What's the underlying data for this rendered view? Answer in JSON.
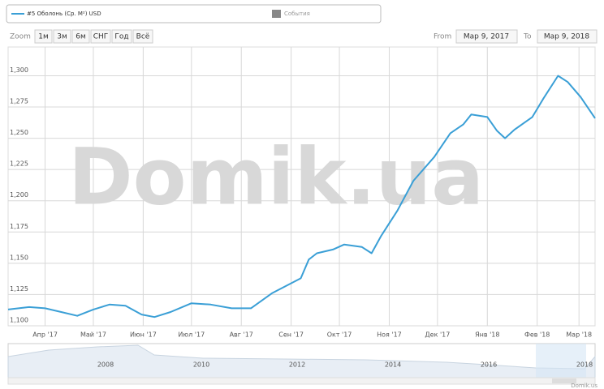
{
  "chart_data": {
    "type": "line",
    "legend": {
      "series_label": "#5 Оболонь (Ср. М²) USD",
      "events_label": "События"
    },
    "zoom": {
      "label": "Zoom",
      "buttons": [
        "1м",
        "3м",
        "6м",
        "СНГ",
        "Год",
        "Всё"
      ]
    },
    "range": {
      "from_label": "From",
      "from": "Map 9, 2017",
      "to_label": "To",
      "to": "Map 9, 2018"
    },
    "watermark": "Domik.ua",
    "credit": "Domik.us",
    "xlim": [
      0,
      365
    ],
    "xticks": [
      {
        "value": 23,
        "label": "Апр '17"
      },
      {
        "value": 53,
        "label": "Май '17"
      },
      {
        "value": 84,
        "label": "Июн '17"
      },
      {
        "value": 114,
        "label": "Июл '17"
      },
      {
        "value": 145,
        "label": "Авг '17"
      },
      {
        "value": 176,
        "label": "Сен '17"
      },
      {
        "value": 206,
        "label": "Окт '17"
      },
      {
        "value": 237,
        "label": "Ноя '17"
      },
      {
        "value": 267,
        "label": "Дек '17"
      },
      {
        "value": 298,
        "label": "Янв '18"
      },
      {
        "value": 329,
        "label": "Фев '18"
      },
      {
        "value": 355,
        "label": "Мар '18"
      }
    ],
    "ylim": [
      1100,
      1323
    ],
    "yticks": [
      {
        "value": 1100,
        "label": "1,100"
      },
      {
        "value": 1125,
        "label": "1,125"
      },
      {
        "value": 1150,
        "label": "1,150"
      },
      {
        "value": 1175,
        "label": "1,175"
      },
      {
        "value": 1200,
        "label": "1,200"
      },
      {
        "value": 1225,
        "label": "1,225"
      },
      {
        "value": 1250,
        "label": "1,250"
      },
      {
        "value": 1275,
        "label": "1,275"
      },
      {
        "value": 1300,
        "label": "1,300"
      }
    ],
    "grid": true,
    "x": [
      0,
      13,
      23,
      33,
      43,
      53,
      63,
      73,
      83,
      91,
      101,
      114,
      126,
      139,
      151,
      164,
      182,
      187,
      192,
      202,
      209,
      220,
      226,
      232,
      242,
      252,
      265,
      275,
      283,
      288,
      298,
      304,
      309,
      315,
      326,
      333,
      342,
      348,
      356,
      365
    ],
    "series": [
      {
        "name": "#5 Оболонь (Ср. М²) USD",
        "color": "#3a9fd6",
        "values": [
          1113,
          1115,
          1114,
          1111,
          1108,
          1113,
          1117,
          1116,
          1109,
          1107,
          1111,
          1118,
          1117,
          1114,
          1114,
          1126,
          1138,
          1153,
          1158,
          1161,
          1165,
          1163,
          1158,
          1172,
          1192,
          1216,
          1235,
          1254,
          1261,
          1269,
          1267,
          1256,
          1250,
          1257,
          1267,
          1282,
          1300,
          1295,
          1283,
          1266
        ]
      }
    ],
    "navigator": {
      "labels": [
        "2008",
        "2010",
        "2012",
        "2014",
        "2016",
        "2018"
      ]
    }
  }
}
